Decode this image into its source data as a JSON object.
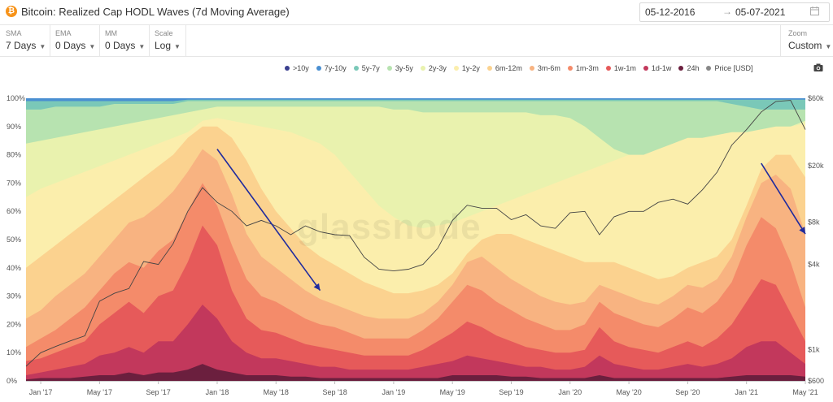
{
  "header": {
    "title": "Bitcoin: Realized Cap HODL Waves (7d Moving Average)",
    "btc_symbol": "₿",
    "date_start": "05-12-2016",
    "date_arrow": "→",
    "date_end": "05-07-2021"
  },
  "controls": [
    {
      "label": "SMA",
      "value": "7 Days"
    },
    {
      "label": "EMA",
      "value": "0 Days"
    },
    {
      "label": "MM",
      "value": "0 Days"
    },
    {
      "label": "Scale",
      "value": "Log"
    }
  ],
  "zoom": {
    "label": "Zoom",
    "value": "Custom"
  },
  "watermark": "glassnode",
  "chart_data": {
    "type": "area",
    "title": "Bitcoin: Realized Cap HODL Waves (7d Moving Average)",
    "stacking": "percent",
    "x": [
      "Dec 16",
      "Jan 17",
      "Feb 17",
      "Mar 17",
      "Apr 17",
      "May 17",
      "Jun 17",
      "Jul 17",
      "Aug 17",
      "Sep 17",
      "Oct 17",
      "Nov 17",
      "Dec 17",
      "Jan 18",
      "Feb 18",
      "Mar 18",
      "Apr 18",
      "May 18",
      "Jun 18",
      "Jul 18",
      "Aug 18",
      "Sep 18",
      "Oct 18",
      "Nov 18",
      "Dec 18",
      "Jan 19",
      "Feb 19",
      "Mar 19",
      "Apr 19",
      "May 19",
      "Jun 19",
      "Jul 19",
      "Aug 19",
      "Sep 19",
      "Oct 19",
      "Nov 19",
      "Dec 19",
      "Jan 20",
      "Feb 20",
      "Mar 20",
      "Apr 20",
      "May 20",
      "Jun 20",
      "Jul 20",
      "Aug 20",
      "Sep 20",
      "Oct 20",
      "Nov 20",
      "Dec 20",
      "Jan 21",
      "Feb 21",
      "Mar 21",
      "Apr 21",
      "May 21"
    ],
    "xtick_labels": [
      "Jan '17",
      "May '17",
      "Sep '17",
      "Jan '18",
      "May '18",
      "Sep '18",
      "Jan '19",
      "May '19",
      "Sep '19",
      "Jan '20",
      "May '20",
      "Sep '20",
      "Jan '21",
      "May '21"
    ],
    "xtick_index": [
      1,
      5,
      9,
      13,
      17,
      21,
      25,
      29,
      33,
      37,
      41,
      45,
      49,
      53
    ],
    "series": [
      {
        "name": "24h",
        "color": "#6b1f3e",
        "cum": [
          0.5,
          1,
          1,
          1,
          1.5,
          2,
          2,
          3,
          2,
          3,
          3,
          4,
          6,
          4,
          3,
          2,
          2,
          2,
          1.5,
          1.5,
          1,
          1,
          1,
          1,
          1,
          1,
          1,
          1,
          1,
          2,
          2,
          2,
          2,
          1.5,
          1.5,
          1,
          1,
          1,
          1,
          2,
          1,
          1,
          1,
          1,
          1,
          1,
          1,
          1,
          1.5,
          2,
          2,
          2,
          2,
          1.5
        ]
      },
      {
        "name": "1d-1w",
        "color": "#c2385c",
        "cum": [
          2,
          3,
          4,
          5,
          6,
          9,
          10,
          12,
          10,
          14,
          14,
          20,
          27,
          22,
          14,
          10,
          8,
          8,
          7,
          6,
          5,
          5,
          4,
          4,
          4,
          4,
          4,
          5,
          6,
          7,
          9,
          8,
          7,
          6,
          5,
          5,
          4,
          4,
          5,
          9,
          6,
          5,
          4,
          4,
          5,
          6,
          5,
          6,
          8,
          12,
          14,
          14,
          10,
          6
        ]
      },
      {
        "name": "1w-1m",
        "color": "#e65a5a",
        "cum": [
          7,
          8,
          10,
          12,
          14,
          20,
          24,
          28,
          24,
          30,
          32,
          42,
          55,
          48,
          32,
          22,
          18,
          17,
          15,
          13,
          12,
          11,
          10,
          9,
          9,
          9,
          9,
          11,
          14,
          17,
          21,
          19,
          16,
          14,
          12,
          11,
          10,
          10,
          11,
          19,
          14,
          12,
          11,
          10,
          12,
          14,
          12,
          15,
          20,
          28,
          36,
          34,
          24,
          14
        ]
      },
      {
        "name": "1m-3m",
        "color": "#f48b6a",
        "cum": [
          12,
          15,
          18,
          22,
          26,
          32,
          38,
          42,
          40,
          46,
          50,
          60,
          70,
          62,
          48,
          36,
          30,
          28,
          25,
          22,
          20,
          19,
          17,
          15,
          15,
          15,
          15,
          18,
          22,
          28,
          34,
          32,
          28,
          25,
          22,
          20,
          18,
          18,
          20,
          28,
          24,
          22,
          20,
          19,
          22,
          26,
          24,
          28,
          35,
          48,
          58,
          54,
          42,
          26
        ]
      },
      {
        "name": "3m-6m",
        "color": "#f8b381",
        "cum": [
          22,
          25,
          30,
          34,
          38,
          44,
          50,
          56,
          58,
          62,
          67,
          74,
          82,
          78,
          66,
          52,
          44,
          40,
          36,
          32,
          29,
          27,
          25,
          23,
          22,
          22,
          22,
          24,
          28,
          34,
          42,
          44,
          40,
          36,
          33,
          30,
          28,
          27,
          28,
          34,
          32,
          30,
          28,
          27,
          30,
          34,
          33,
          36,
          44,
          58,
          70,
          73,
          68,
          52
        ]
      },
      {
        "name": "6m-12m",
        "color": "#fbd28f",
        "cum": [
          40,
          44,
          48,
          52,
          56,
          60,
          64,
          68,
          72,
          76,
          80,
          86,
          90,
          90,
          86,
          78,
          68,
          60,
          54,
          48,
          44,
          41,
          38,
          35,
          33,
          31,
          31,
          32,
          34,
          38,
          45,
          50,
          52,
          52,
          50,
          48,
          46,
          44,
          42,
          42,
          42,
          40,
          38,
          36,
          37,
          40,
          42,
          44,
          50,
          62,
          75,
          80,
          80,
          72
        ]
      },
      {
        "name": "1y-2y",
        "color": "#fbeeac",
        "cum": [
          65,
          68,
          70,
          72,
          74,
          76,
          78,
          80,
          82,
          84,
          86,
          88,
          92,
          93,
          92,
          91,
          90,
          89,
          88,
          86,
          84,
          80,
          74,
          68,
          62,
          58,
          55,
          54,
          55,
          56,
          58,
          60,
          62,
          64,
          66,
          68,
          70,
          72,
          74,
          76,
          78,
          80,
          80,
          82,
          84,
          86,
          86,
          87,
          88,
          88,
          89,
          90,
          90,
          91
        ]
      },
      {
        "name": "2y-3y",
        "color": "#e9f2ae",
        "cum": [
          84,
          85,
          86,
          87,
          88,
          89,
          90,
          91,
          92,
          93,
          94,
          95,
          96,
          97,
          97,
          97,
          97,
          97,
          97,
          97,
          97,
          97,
          97,
          97,
          97,
          96,
          96,
          95,
          95,
          95,
          95,
          95,
          95,
          95,
          95,
          94,
          94,
          93,
          90,
          86,
          82,
          80,
          79,
          79,
          79,
          80,
          80,
          81,
          82,
          84,
          86,
          88,
          90,
          92
        ]
      },
      {
        "name": "3y-5y",
        "color": "#b7e3b0",
        "cum": [
          96,
          96,
          97,
          97,
          97,
          97,
          98,
          98,
          98,
          98,
          98,
          99,
          99,
          99,
          99,
          99,
          99,
          99,
          99,
          99,
          99,
          99,
          99,
          99,
          99,
          99,
          99,
          99,
          99,
          99,
          99,
          99,
          99,
          99,
          99,
          99,
          99,
          99,
          99,
          99,
          99,
          99,
          99,
          99,
          99,
          99,
          99,
          99,
          98,
          97,
          96,
          96,
          96,
          96
        ]
      },
      {
        "name": "5y-7y",
        "color": "#7ac8b8",
        "cum": [
          99,
          99,
          99,
          99,
          99,
          99,
          99,
          99,
          99,
          99,
          99,
          99.5,
          99.5,
          99.5,
          99.5,
          99.5,
          99.5,
          99.5,
          99.5,
          99.5,
          99.5,
          99.5,
          99.5,
          99.5,
          99.5,
          99.5,
          99.5,
          99.5,
          99.5,
          99.5,
          99.5,
          99.5,
          99.5,
          99.5,
          99.5,
          99.5,
          99.5,
          99.5,
          99.5,
          99.5,
          99.5,
          99.5,
          99.5,
          99.5,
          99.5,
          99.5,
          99.5,
          99.5,
          99.5,
          99.5,
          99.5,
          99.5,
          99.5,
          99.5
        ]
      },
      {
        "name": "7y-10y",
        "color": "#4a8fd1",
        "cum": [
          100,
          100,
          100,
          100,
          100,
          100,
          100,
          100,
          100,
          100,
          100,
          100,
          100,
          100,
          100,
          100,
          100,
          100,
          100,
          100,
          100,
          100,
          100,
          100,
          100,
          100,
          100,
          100,
          100,
          100,
          100,
          100,
          100,
          100,
          100,
          100,
          100,
          100,
          100,
          100,
          100,
          100,
          100,
          100,
          100,
          100,
          100,
          100,
          100,
          100,
          100,
          100,
          100,
          100
        ]
      },
      {
        "name": ">10y",
        "color": "#3a3f8f",
        "cum": [
          100,
          100,
          100,
          100,
          100,
          100,
          100,
          100,
          100,
          100,
          100,
          100,
          100,
          100,
          100,
          100,
          100,
          100,
          100,
          100,
          100,
          100,
          100,
          100,
          100,
          100,
          100,
          100,
          100,
          100,
          100,
          100,
          100,
          100,
          100,
          100,
          100,
          100,
          100,
          100,
          100,
          100,
          100,
          100,
          100,
          100,
          100,
          100,
          100,
          100,
          100,
          100,
          100,
          100
        ]
      }
    ],
    "price_series": {
      "name": "Price [USD]",
      "color": "#444444",
      "values": [
        760,
        950,
        1050,
        1150,
        1250,
        2200,
        2500,
        2700,
        4200,
        4000,
        5600,
        9500,
        14000,
        11000,
        9500,
        7500,
        8200,
        7500,
        6500,
        7500,
        6800,
        6500,
        6400,
        4500,
        3700,
        3600,
        3700,
        4000,
        5200,
        8200,
        10500,
        10000,
        10000,
        8300,
        9000,
        7500,
        7200,
        9300,
        9500,
        6500,
        8700,
        9500,
        9500,
        11000,
        11600,
        10700,
        13500,
        18000,
        28000,
        36000,
        48000,
        57000,
        58000,
        36000
      ]
    },
    "y_left": {
      "min": 0,
      "max": 100,
      "ticks": [
        0,
        10,
        20,
        30,
        40,
        50,
        60,
        70,
        80,
        90,
        100
      ],
      "tick_labels": [
        "0%",
        "10%",
        "20%",
        "30%",
        "40%",
        "50%",
        "60%",
        "70%",
        "80%",
        "90%",
        "100%"
      ]
    },
    "y_right": {
      "scale": "log",
      "min": 600,
      "max": 60000,
      "ticks": [
        600,
        1000,
        4000,
        8000,
        20000,
        60000
      ],
      "tick_labels": [
        "$600",
        "$1k",
        "$4k",
        "$8k",
        "$20k",
        "$60k"
      ]
    },
    "legend": [
      {
        "name": ">10y",
        "color": "#3a3f8f"
      },
      {
        "name": "7y-10y",
        "color": "#4a8fd1"
      },
      {
        "name": "5y-7y",
        "color": "#7ac8b8"
      },
      {
        "name": "3y-5y",
        "color": "#b7e3b0"
      },
      {
        "name": "2y-3y",
        "color": "#e9f2ae"
      },
      {
        "name": "1y-2y",
        "color": "#fbeeac"
      },
      {
        "name": "6m-12m",
        "color": "#fbd28f"
      },
      {
        "name": "3m-6m",
        "color": "#f8b381"
      },
      {
        "name": "1m-3m",
        "color": "#f48b6a"
      },
      {
        "name": "1w-1m",
        "color": "#e65a5a"
      },
      {
        "name": "1d-1w",
        "color": "#c2385c"
      },
      {
        "name": "24h",
        "color": "#6b1f3e"
      },
      {
        "name": "Price [USD]",
        "color": "#888888"
      }
    ],
    "annotations": [
      {
        "type": "arrow",
        "color": "#1f2a9e",
        "from": [
          "Jan 18",
          82
        ],
        "to": [
          "Aug 18",
          32
        ]
      },
      {
        "type": "arrow",
        "color": "#1f2a9e",
        "from": [
          "Feb 21",
          77
        ],
        "to": [
          "May 21",
          52
        ]
      }
    ]
  }
}
